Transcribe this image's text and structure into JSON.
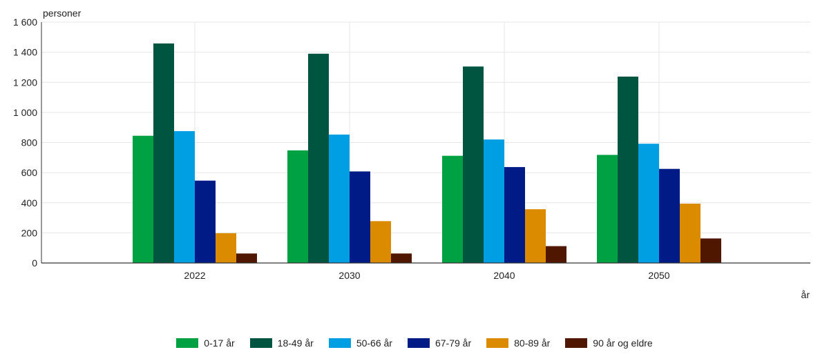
{
  "chart_data": {
    "type": "bar",
    "title": "",
    "ylabel": "personer",
    "xlabel": "år",
    "categories": [
      "2022",
      "2030",
      "2040",
      "2050"
    ],
    "ylim": [
      0,
      1600
    ],
    "yticks": [
      0,
      200,
      400,
      600,
      800,
      1000,
      1200,
      1400,
      1600
    ],
    "ytick_labels": [
      "0",
      "200",
      "400",
      "600",
      "800",
      "1 000",
      "1 200",
      "1 400",
      "1 600"
    ],
    "grid": true,
    "legend_position": "bottom-center",
    "series": [
      {
        "name": "0-17 år",
        "color": "#00a142",
        "values": [
          845,
          748,
          712,
          718
        ]
      },
      {
        "name": "18-49 år",
        "color": "#005541",
        "values": [
          1458,
          1390,
          1305,
          1238
        ]
      },
      {
        "name": "50-66 år",
        "color": "#009fe3",
        "values": [
          876,
          853,
          820,
          792
        ]
      },
      {
        "name": "67-79 år",
        "color": "#001a86",
        "values": [
          547,
          608,
          637,
          625
        ]
      },
      {
        "name": "80-89 år",
        "color": "#db8b00",
        "values": [
          198,
          278,
          357,
          394
        ]
      },
      {
        "name": "90 år og eldre",
        "color": "#4f1700",
        "values": [
          63,
          63,
          112,
          163
        ]
      }
    ]
  }
}
